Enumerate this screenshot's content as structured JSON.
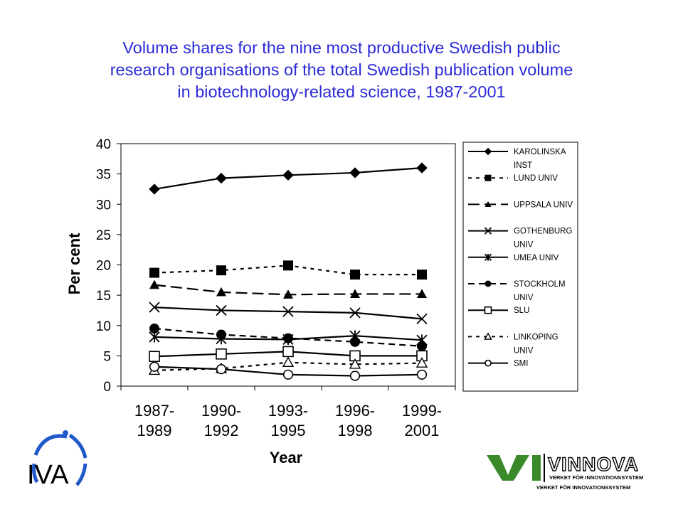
{
  "title_lines": [
    "Volume shares for the nine most productive Swedish public",
    "research organisations of the total Swedish publication volume",
    "in biotechnology-related science, 1987-2001"
  ],
  "chart_data": {
    "type": "line",
    "title": "Volume shares for the nine most productive Swedish public research organisations of the total Swedish publication volume in biotechnology-related science, 1987-2001",
    "xlabel": "Year",
    "ylabel": "Per cent",
    "ylim": [
      0,
      40
    ],
    "yticks": [
      0,
      5,
      10,
      15,
      20,
      25,
      30,
      35,
      40
    ],
    "categories": [
      [
        "1987-",
        "1989"
      ],
      [
        "1990-",
        "1992"
      ],
      [
        "1993-",
        "1995"
      ],
      [
        "1996-",
        "1998"
      ],
      [
        "1999-",
        "2001"
      ]
    ],
    "grid": false,
    "legend_position": "right",
    "series": [
      {
        "name": "KAROLINSKA INST",
        "legend_lines": [
          "KAROLINSKA",
          "INST"
        ],
        "values": [
          32.5,
          34.3,
          34.8,
          35.2,
          36.0
        ],
        "marker": "diamond",
        "dash": "solid"
      },
      {
        "name": "LUND UNIV",
        "legend_lines": [
          "LUND UNIV"
        ],
        "values": [
          18.7,
          19.1,
          19.9,
          18.4,
          18.4
        ],
        "marker": "square-filled",
        "dash": "dotted"
      },
      {
        "name": "UPPSALA UNIV",
        "legend_lines": [
          "UPPSALA UNIV"
        ],
        "values": [
          16.7,
          15.5,
          15.1,
          15.2,
          15.2
        ],
        "marker": "triangle-filled",
        "dash": "long-dash"
      },
      {
        "name": "GOTHENBURG UNIV",
        "legend_lines": [
          "GOTHENBURG",
          "UNIV"
        ],
        "values": [
          13.0,
          12.5,
          12.3,
          12.1,
          11.1
        ],
        "marker": "x",
        "dash": "solid"
      },
      {
        "name": "UMEA UNIV",
        "legend_lines": [
          "UMEA UNIV"
        ],
        "values": [
          8.1,
          7.8,
          7.7,
          8.3,
          7.6
        ],
        "marker": "star",
        "dash": "solid"
      },
      {
        "name": "STOCKHOLM UNIV",
        "legend_lines": [
          "STOCKHOLM",
          "UNIV"
        ],
        "values": [
          9.5,
          8.5,
          7.9,
          7.3,
          6.6
        ],
        "marker": "circle-filled",
        "dash": "dash"
      },
      {
        "name": "SLU",
        "legend_lines": [
          "SLU"
        ],
        "values": [
          4.9,
          5.3,
          5.7,
          5.0,
          5.0
        ],
        "marker": "square-open",
        "dash": "solid"
      },
      {
        "name": "LINKOPING UNIV",
        "legend_lines": [
          "LINKOPING",
          "UNIV"
        ],
        "values": [
          2.6,
          2.9,
          3.9,
          3.6,
          3.8
        ],
        "marker": "triangle-open",
        "dash": "dotted"
      },
      {
        "name": "SMI",
        "legend_lines": [
          "SMI"
        ],
        "values": [
          3.2,
          2.8,
          1.9,
          1.7,
          1.9
        ],
        "marker": "circle-open",
        "dash": "solid"
      }
    ]
  },
  "logos": {
    "iva": {
      "text": "IVA",
      "color": "#1f58c8"
    },
    "vinnova": {
      "text": "VINNOVA",
      "vi_color": "#3a8a2a",
      "tagline": "VERKET FÖR INNOVATIONSSYSTEM",
      "tagline2": "VERKET FÖR INNOVATIONSSYSTEM"
    }
  }
}
